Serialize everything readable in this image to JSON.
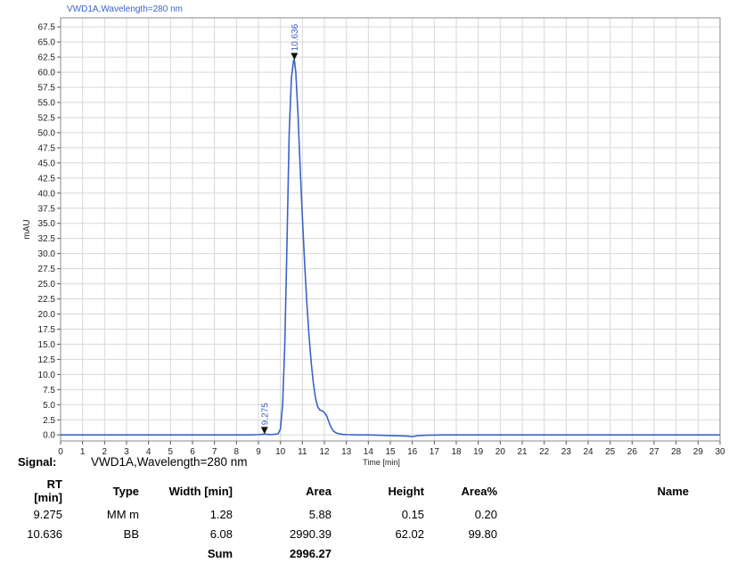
{
  "chart_data": {
    "type": "line",
    "title": "VWD1A,Wavelength=280 nm",
    "xlabel": "Time [min]",
    "ylabel": "mAU",
    "xlim": [
      0,
      30
    ],
    "ylim": [
      -1,
      69
    ],
    "x_ticks": [
      "0",
      "1",
      "2",
      "3",
      "4",
      "5",
      "6",
      "7",
      "8",
      "9",
      "10",
      "11",
      "12",
      "13",
      "14",
      "15",
      "16",
      "17",
      "18",
      "19",
      "20",
      "21",
      "22",
      "23",
      "24",
      "25",
      "26",
      "27",
      "28",
      "29",
      "30"
    ],
    "y_ticks": [
      "0.0",
      "2.5",
      "5.0",
      "7.5",
      "10.0",
      "12.5",
      "15.0",
      "17.5",
      "20.0",
      "22.5",
      "25.0",
      "27.5",
      "30.0",
      "32.5",
      "35.0",
      "37.5",
      "40.0",
      "42.5",
      "45.0",
      "47.5",
      "50.0",
      "52.5",
      "55.0",
      "57.5",
      "60.0",
      "62.5",
      "65.0",
      "67.5"
    ],
    "grid": true,
    "series": [
      {
        "x": [
          0,
          8.5,
          9.0,
          9.2,
          9.275,
          9.4,
          9.6,
          9.9,
          10.0,
          10.1,
          10.2,
          10.3,
          10.4,
          10.5,
          10.6,
          10.636,
          10.7,
          10.8,
          10.9,
          11.0,
          11.1,
          11.2,
          11.3,
          11.4,
          11.5,
          11.6,
          11.7,
          11.8,
          11.9,
          12.0,
          12.1,
          12.2,
          12.3,
          12.4,
          12.5,
          12.6,
          12.8,
          13.0,
          13.5,
          14.0,
          15.0,
          15.8,
          16.0,
          16.2,
          16.6,
          17.5,
          20.0,
          30.0
        ],
        "y": [
          0.0,
          0.0,
          0.05,
          0.1,
          0.15,
          0.1,
          0.05,
          0.2,
          1.0,
          5.0,
          15.0,
          32.0,
          50.0,
          59.0,
          62.0,
          62.02,
          60.0,
          53.0,
          44.0,
          36.0,
          28.5,
          22.0,
          16.5,
          12.0,
          8.5,
          6.0,
          4.6,
          4.1,
          4.0,
          3.7,
          3.2,
          2.2,
          1.3,
          0.7,
          0.4,
          0.25,
          0.1,
          0.05,
          0.0,
          0.0,
          -0.1,
          -0.2,
          -0.3,
          -0.15,
          -0.05,
          0.0,
          0.0,
          0.0
        ]
      }
    ],
    "annotations": [
      {
        "x": 9.275,
        "y": 0.15,
        "label": "9.275"
      },
      {
        "x": 10.636,
        "y": 62.02,
        "label": "10.636"
      }
    ]
  },
  "signal": {
    "label": "Signal:",
    "value": "VWD1A,Wavelength=280 nm"
  },
  "table": {
    "headers": [
      "RT [min]",
      "Type",
      "Width [min]",
      "Area",
      "Height",
      "Area%",
      "Name"
    ],
    "rows": [
      [
        "9.275",
        "MM m",
        "1.28",
        "5.88",
        "0.15",
        "0.20",
        ""
      ],
      [
        "10.636",
        "BB",
        "6.08",
        "2990.39",
        "62.02",
        "99.80",
        ""
      ]
    ],
    "sum_label": "Sum",
    "sum_value": "2996.27"
  },
  "colors": {
    "trace": "#3a63c9",
    "grid": "#d8d8d8",
    "axis": "#555555",
    "marker": "#111111"
  }
}
